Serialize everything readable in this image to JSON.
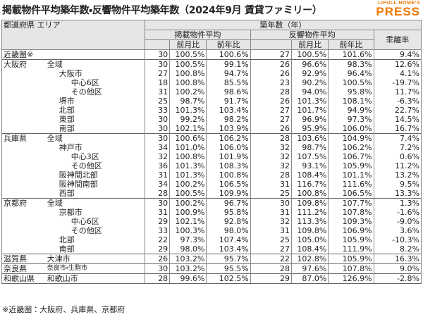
{
  "header": {
    "title": "掲載物件平均築年数・反響物件平均築年数（2024年9月 賃貸ファミリー）",
    "logo_top": "LIFULL HOME'S",
    "logo_bottom": "PRESS"
  },
  "table": {
    "corner": "都道府県 エリア",
    "group": "築年数（年）",
    "subgroups": [
      "掲載物件平均",
      "反響物件平均",
      "乖離率"
    ],
    "subheaders": [
      "前月比",
      "前年比",
      "前月比",
      "前年比"
    ],
    "rows": [
      {
        "pref": "近畿圏※",
        "values": [
          "30",
          "100.5%",
          "100.6%",
          "27",
          "100.5%",
          "101.6%",
          "9.4%"
        ]
      },
      {
        "pref": "大阪府",
        "area": "全域",
        "values": [
          "30",
          "100.5%",
          "99.1%",
          "26",
          "96.6%",
          "98.3%",
          "12.6%"
        ]
      },
      {
        "area": "大阪市",
        "values": [
          "27",
          "100.8%",
          "94.7%",
          "26",
          "92.9%",
          "96.4%",
          "4.1%"
        ]
      },
      {
        "area": "中心6区",
        "values": [
          "18",
          "100.8%",
          "85.5%",
          "23",
          "90.2%",
          "100.5%",
          "-19.7%"
        ]
      },
      {
        "area": "その他区",
        "values": [
          "31",
          "100.2%",
          "98.6%",
          "28",
          "94.0%",
          "95.8%",
          "11.7%"
        ]
      },
      {
        "area": "堺市",
        "values": [
          "25",
          "98.7%",
          "91.7%",
          "26",
          "101.3%",
          "108.1%",
          "-6.3%"
        ]
      },
      {
        "area": "北部",
        "values": [
          "33",
          "101.3%",
          "103.4%",
          "27",
          "101.7%",
          "94.9%",
          "22.7%"
        ]
      },
      {
        "area": "東部",
        "values": [
          "30",
          "99.2%",
          "98.2%",
          "27",
          "96.9%",
          "97.3%",
          "14.5%"
        ]
      },
      {
        "area": "南部",
        "values": [
          "30",
          "102.1%",
          "103.9%",
          "26",
          "95.9%",
          "106.0%",
          "16.7%"
        ]
      },
      {
        "pref": "兵庫県",
        "area": "全域",
        "values": [
          "30",
          "100.6%",
          "106.2%",
          "28",
          "103.6%",
          "104.9%",
          "7.4%"
        ]
      },
      {
        "area": "神戸市",
        "values": [
          "34",
          "101.0%",
          "106.0%",
          "32",
          "98.7%",
          "106.2%",
          "7.2%"
        ]
      },
      {
        "area": "中心3区",
        "values": [
          "32",
          "100.8%",
          "101.9%",
          "32",
          "107.5%",
          "106.7%",
          "0.6%"
        ]
      },
      {
        "area": "その他区",
        "values": [
          "36",
          "101.3%",
          "108.3%",
          "32",
          "93.1%",
          "105.9%",
          "11.2%"
        ]
      },
      {
        "area": "阪神間北部",
        "values": [
          "31",
          "101.3%",
          "100.8%",
          "28",
          "108.4%",
          "101.1%",
          "13.2%"
        ]
      },
      {
        "area": "阪神間南部",
        "values": [
          "34",
          "100.2%",
          "106.5%",
          "31",
          "116.7%",
          "111.6%",
          "9.5%"
        ]
      },
      {
        "area": "西部",
        "values": [
          "28",
          "100.5%",
          "109.9%",
          "25",
          "100.8%",
          "106.5%",
          "13.3%"
        ]
      },
      {
        "pref": "京都府",
        "area": "全域",
        "values": [
          "30",
          "100.2%",
          "96.7%",
          "30",
          "109.8%",
          "107.7%",
          "1.3%"
        ]
      },
      {
        "area": "京都市",
        "values": [
          "31",
          "100.9%",
          "95.8%",
          "31",
          "111.2%",
          "107.8%",
          "-1.6%"
        ]
      },
      {
        "area": "中心6区",
        "values": [
          "29",
          "102.1%",
          "92.8%",
          "32",
          "113.3%",
          "109.3%",
          "-9.0%"
        ]
      },
      {
        "area": "その他区",
        "values": [
          "33",
          "100.3%",
          "98.0%",
          "31",
          "109.8%",
          "106.9%",
          "3.6%"
        ]
      },
      {
        "area": "北部",
        "values": [
          "22",
          "97.3%",
          "107.4%",
          "25",
          "105.0%",
          "105.9%",
          "-10.3%"
        ]
      },
      {
        "area": "南部",
        "values": [
          "29",
          "98.0%",
          "103.4%",
          "27",
          "108.4%",
          "111.9%",
          "8.2%"
        ]
      },
      {
        "pref": "滋賀県",
        "area": "大津市",
        "values": [
          "26",
          "103.2%",
          "95.7%",
          "22",
          "102.8%",
          "105.9%",
          "16.3%"
        ]
      },
      {
        "pref": "奈良県",
        "area": "奈良市・生駒市",
        "values": [
          "30",
          "103.2%",
          "95.5%",
          "28",
          "97.6%",
          "107.8%",
          "9.0%"
        ]
      },
      {
        "pref": "和歌山県",
        "area": "和歌山市",
        "values": [
          "28",
          "99.6%",
          "102.5%",
          "29",
          "87.0%",
          "126.9%",
          "-2.8%"
        ]
      }
    ],
    "footnote": "※近畿圏：大阪府、兵庫県、京都府"
  }
}
